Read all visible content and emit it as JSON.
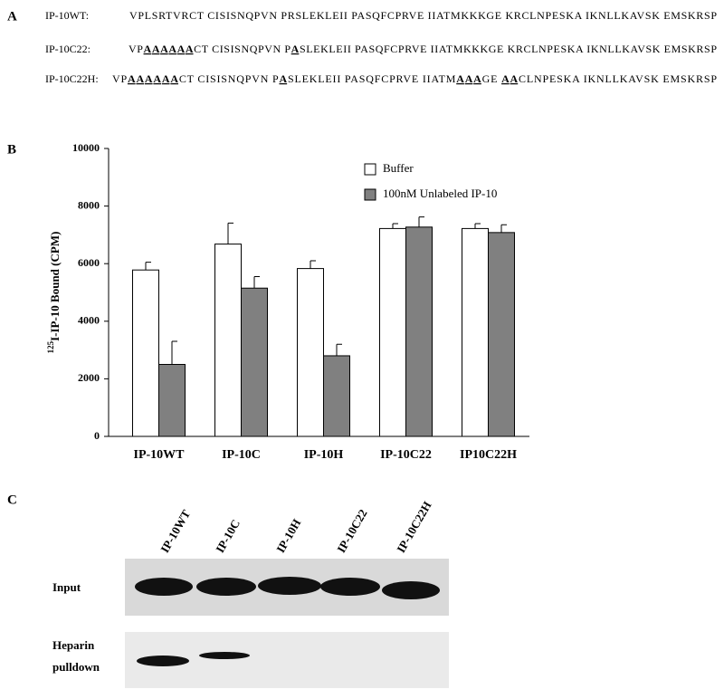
{
  "panels": {
    "a": "A",
    "b": "B",
    "c": "C"
  },
  "sequences": [
    {
      "label": "IP-10WT:",
      "segments": [
        "VPLSRTVRCT CISISNQPVN PRSLEKLEII PASQFCPRVE IIATMKKKGE KRCLNPESKA IKNLLKAVSK EMSKRSP"
      ]
    },
    {
      "label": "IP-10C22:",
      "segments": [
        "VP",
        "AAAAAA",
        "CT CISISNQPVN P",
        "A",
        "SLEKLEII PASQFCPRVE IIATMKKKGE KRCLNPESKA IKNLLKAVSK EMSKRSP"
      ]
    },
    {
      "label": "IP-10C22H:",
      "segments": [
        "VP",
        "AAAAAA",
        "CT CISISNQPVN P",
        "A",
        "SLEKLEII PASQFCPRVE IIATM",
        "AAA",
        "GE ",
        "AA",
        "CLNPESKA IKNLLKAVSK EMSKRSP"
      ]
    }
  ],
  "chart_data": {
    "type": "bar",
    "ylabel_superscript": "125",
    "ylabel": "I-IP-10 Bound (CPM)",
    "categories": [
      "IP-10WT",
      "IP-10C",
      "IP-10H",
      "IP-10C22",
      "IP10C22H"
    ],
    "series": [
      {
        "name": "Buffer",
        "color": "#ffffff",
        "values": [
          5780,
          6680,
          5830,
          7220,
          7220
        ],
        "errors": [
          270,
          730,
          270,
          170,
          170
        ]
      },
      {
        "name": "100nM Unlabeled IP-10",
        "color": "#808080",
        "values": [
          2500,
          5150,
          2800,
          7270,
          7080
        ],
        "errors": [
          800,
          400,
          400,
          350,
          270
        ]
      }
    ],
    "ylim": [
      0,
      10000
    ],
    "yticks": [
      0,
      2000,
      4000,
      6000,
      8000,
      10000
    ],
    "grid": false,
    "legend": "top-right"
  },
  "blot": {
    "lanes": [
      "IP-10WT",
      "IP-10C",
      "IP-10H",
      "IP-10C22",
      "IP-10C22H"
    ],
    "rows": [
      {
        "label": [
          "Input"
        ]
      },
      {
        "label": [
          "Heparin",
          "pulldown"
        ]
      }
    ]
  }
}
